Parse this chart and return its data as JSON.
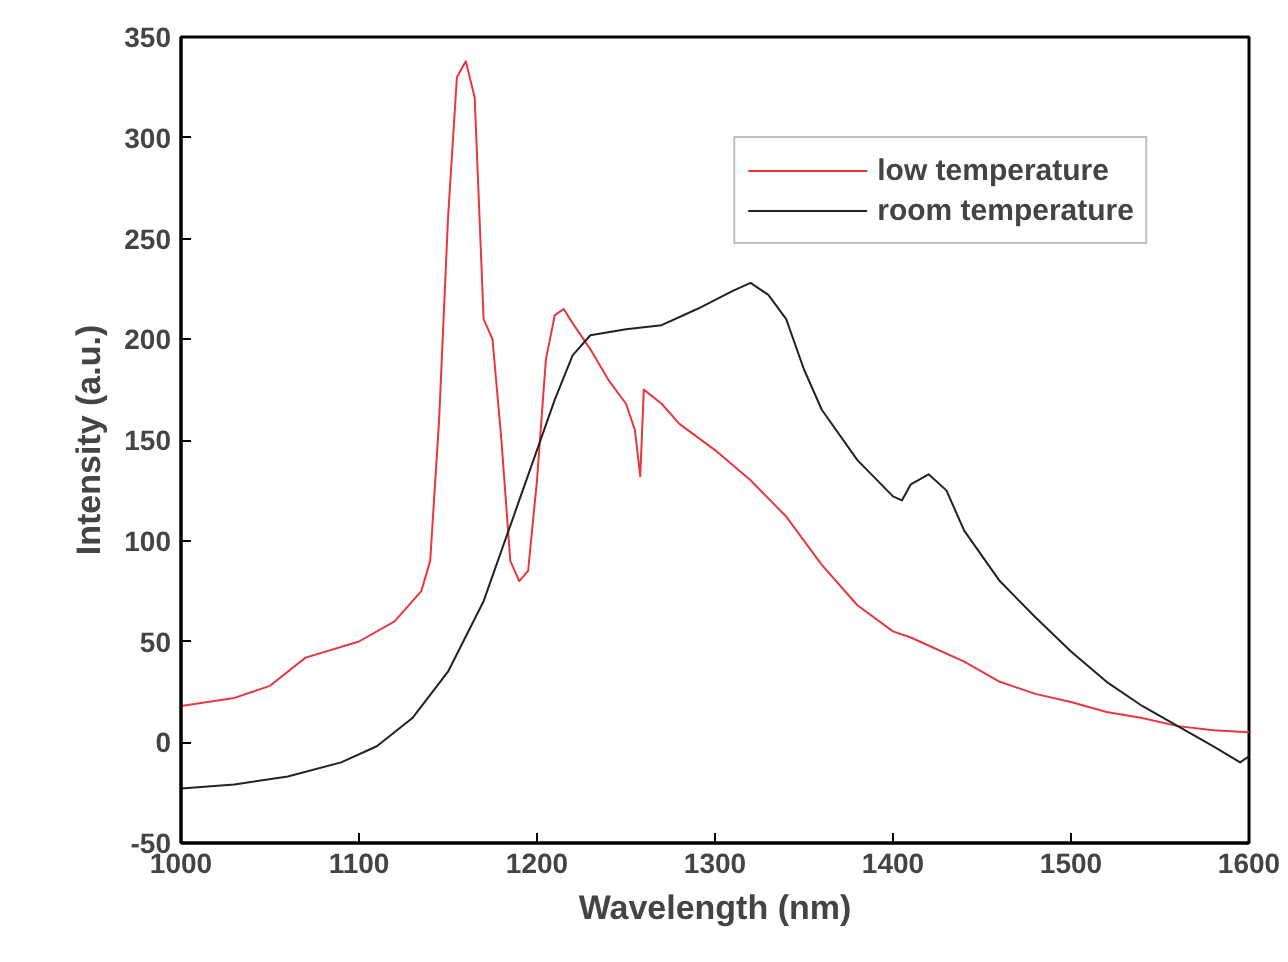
{
  "chart_data": {
    "type": "line",
    "xlabel": "Wavelength (nm)",
    "ylabel": "Intensity (a.u.)",
    "xlim": [
      1000,
      1600
    ],
    "xticks": [
      1000,
      1100,
      1200,
      1300,
      1400,
      1500,
      1600
    ],
    "ylim": [
      -50,
      350
    ],
    "yticks": [
      -50,
      0,
      50,
      100,
      150,
      200,
      250,
      300,
      350
    ],
    "grid": false,
    "legend": "top right",
    "marker": "none",
    "line_style": "solid",
    "series": [
      {
        "name": "low temperature",
        "color": "#e8383d",
        "x": [
          1000,
          1030,
          1050,
          1070,
          1100,
          1120,
          1135,
          1140,
          1145,
          1150,
          1155,
          1160,
          1165,
          1170,
          1175,
          1180,
          1185,
          1190,
          1195,
          1200,
          1205,
          1210,
          1215,
          1220,
          1230,
          1240,
          1250,
          1255,
          1258,
          1260,
          1270,
          1280,
          1300,
          1320,
          1340,
          1360,
          1380,
          1400,
          1410,
          1420,
          1440,
          1460,
          1480,
          1500,
          1520,
          1540,
          1560,
          1580,
          1600
        ],
        "values": [
          18,
          22,
          28,
          42,
          50,
          60,
          75,
          90,
          160,
          260,
          330,
          338,
          320,
          210,
          200,
          150,
          90,
          80,
          85,
          130,
          190,
          212,
          215,
          208,
          195,
          180,
          168,
          155,
          132,
          175,
          168,
          158,
          145,
          130,
          112,
          88,
          68,
          55,
          52,
          48,
          40,
          30,
          24,
          20,
          15,
          12,
          8,
          6,
          5
        ]
      },
      {
        "name": "room temperature",
        "color": "#222222",
        "x": [
          1000,
          1030,
          1060,
          1090,
          1110,
          1130,
          1150,
          1170,
          1190,
          1200,
          1210,
          1220,
          1230,
          1250,
          1270,
          1290,
          1310,
          1320,
          1330,
          1340,
          1350,
          1360,
          1380,
          1400,
          1405,
          1410,
          1420,
          1430,
          1440,
          1460,
          1480,
          1500,
          1520,
          1540,
          1560,
          1580,
          1595,
          1600
        ],
        "values": [
          -23,
          -21,
          -17,
          -10,
          -2,
          12,
          35,
          70,
          120,
          145,
          170,
          192,
          202,
          205,
          207,
          215,
          224,
          228,
          222,
          210,
          185,
          165,
          140,
          122,
          120,
          128,
          133,
          125,
          105,
          80,
          62,
          45,
          30,
          18,
          8,
          -2,
          -10,
          -7
        ]
      }
    ]
  }
}
